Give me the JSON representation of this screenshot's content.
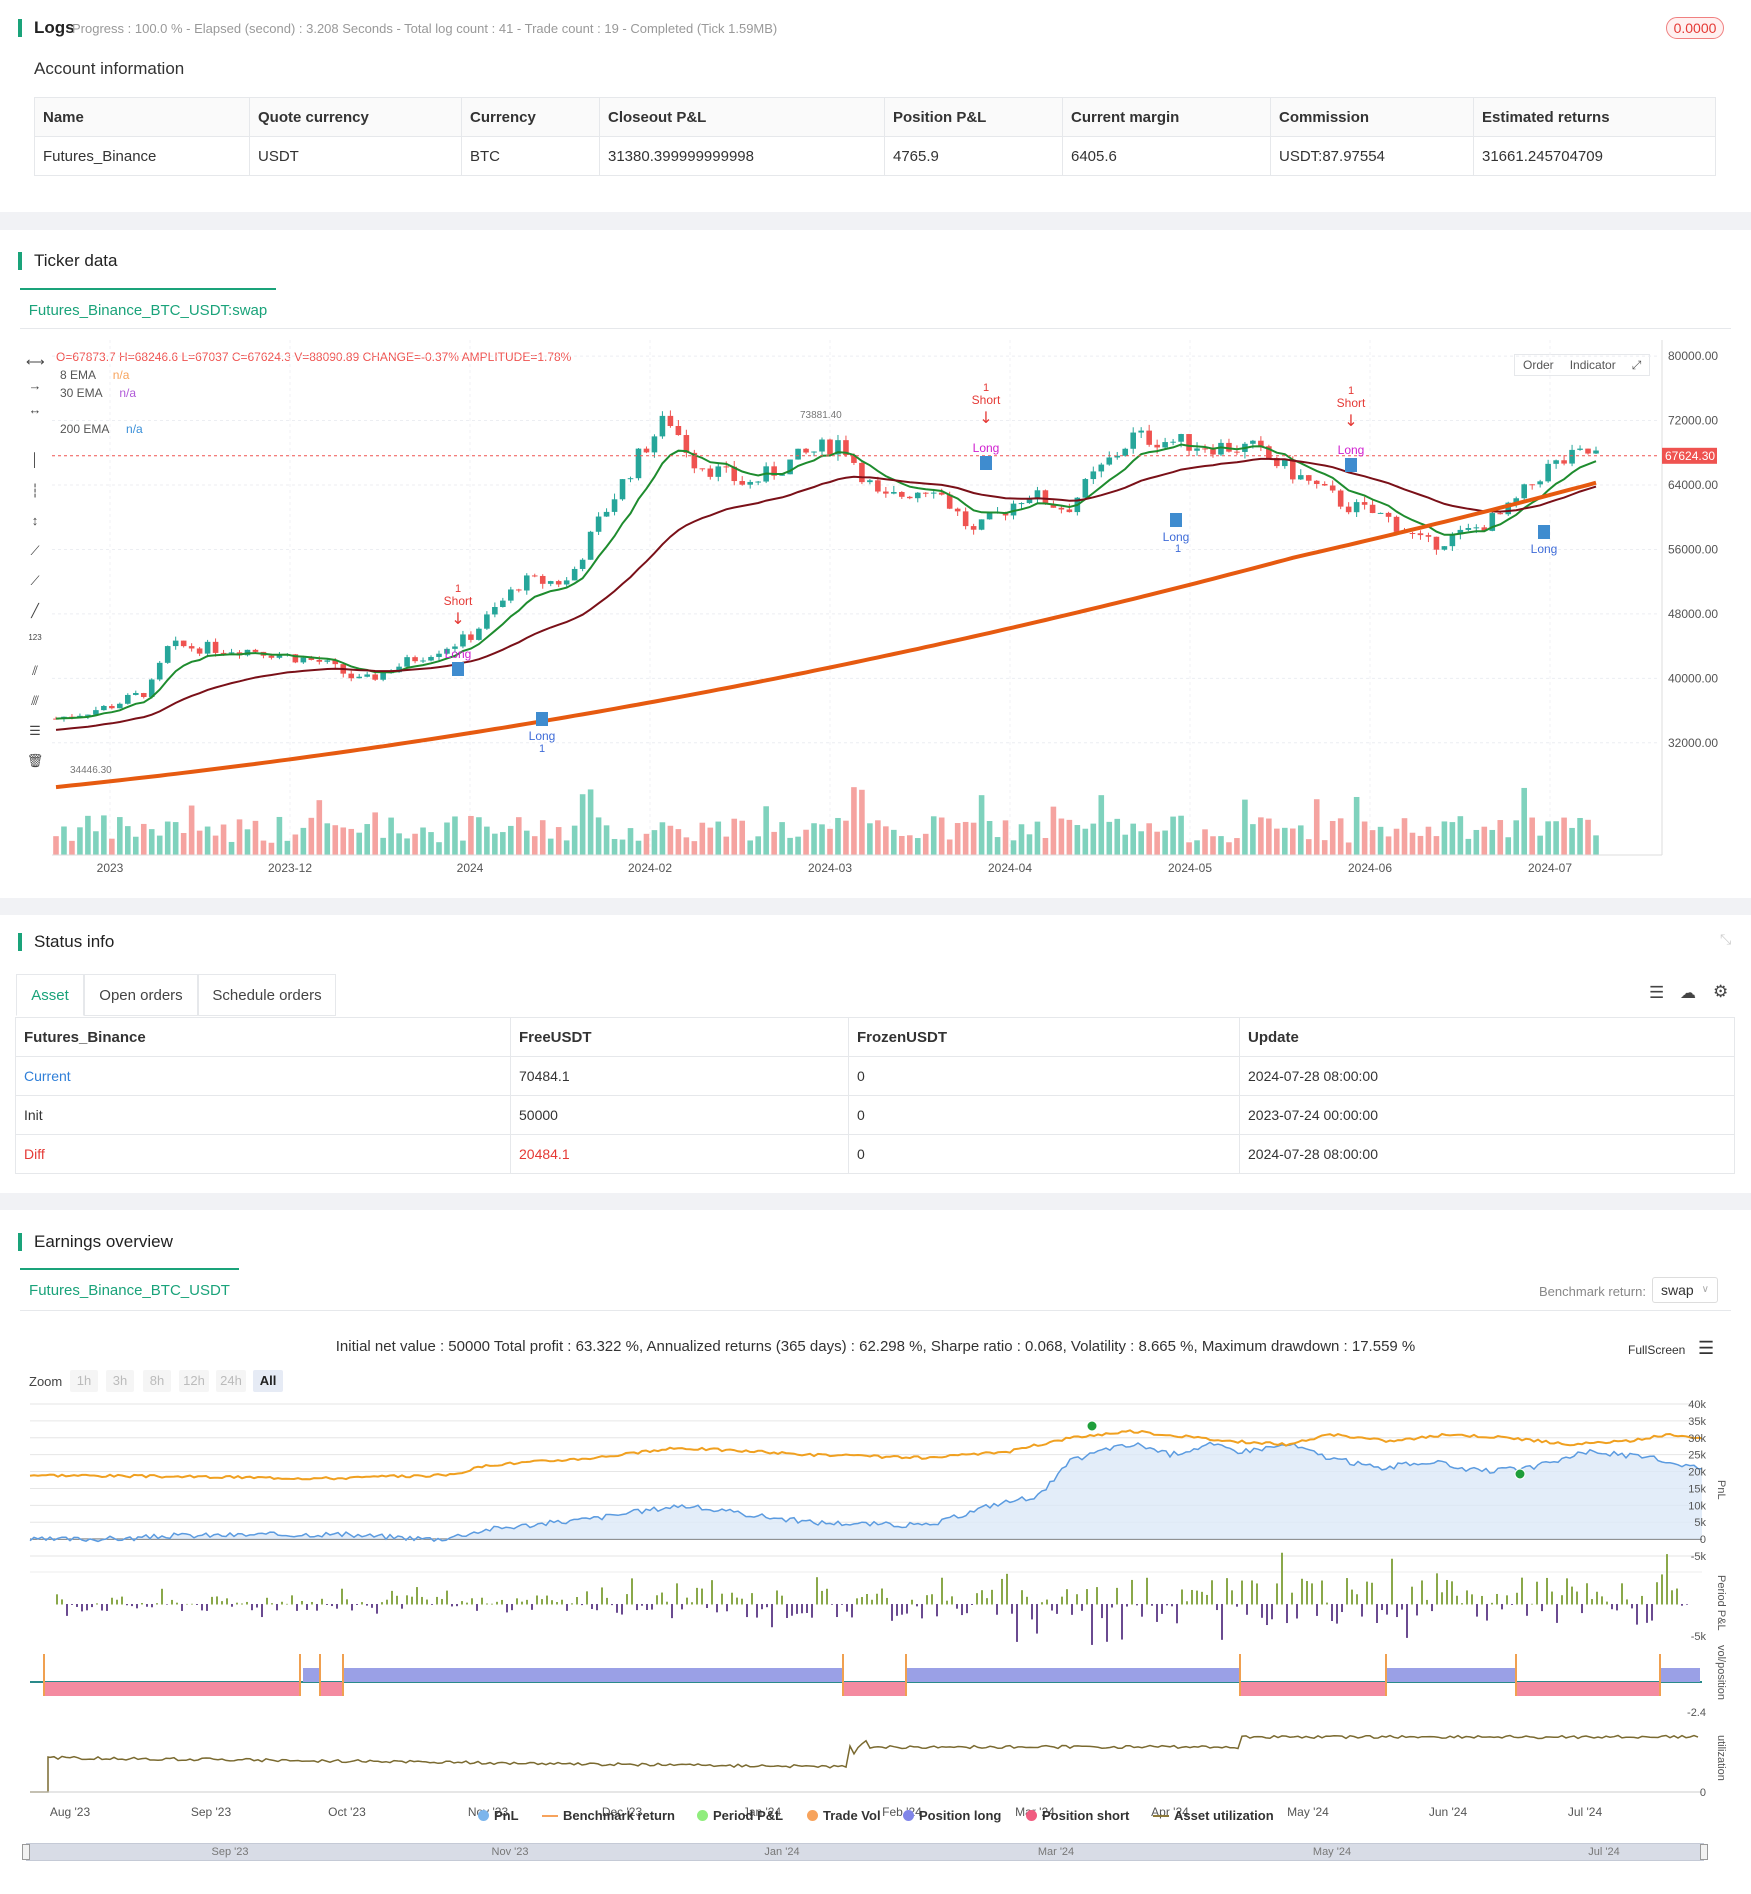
{
  "logs": {
    "title": "Logs",
    "status": "Progress : 100.0 % - Elapsed (second) : 3.208  Seconds - Total log count : 41 - Trade count : 19 - Completed (Tick 1.59MB)",
    "badge": "0.0000"
  },
  "account": {
    "title": "Account information",
    "headers": [
      "Name",
      "Quote currency",
      "Currency",
      "Closeout P&L",
      "Position P&L",
      "Current margin",
      "Commission",
      "Estimated returns"
    ],
    "row": [
      "Futures_Binance",
      "USDT",
      "BTC",
      "31380.399999999998",
      "4765.9",
      "6405.6",
      "USDT:87.97554",
      "31661.245704709"
    ]
  },
  "ticker": {
    "title": "Ticker data",
    "tab": "Futures_Binance_BTC_USDT:swap",
    "ohlc": "O=67873.7 H=68246.6 L=67037 C=67624.3 V=88090.89 CHANGE=-0.37% AMPLITUDE=1.78%",
    "ema8": "8 EMA",
    "ema30": "30 EMA",
    "ema200": "200 EMA",
    "na": "n/a",
    "btn_order": "Order",
    "btn_indicator": "Indicator",
    "price_labels": [
      "80000.00",
      "72000.00",
      "64000.00",
      "56000.00",
      "48000.00",
      "40000.00",
      "32000.00"
    ],
    "current_price": "67624.30",
    "high_label": "73881.40",
    "low_label": "34446.30",
    "x_labels": [
      "2023",
      "2023-12",
      "2024",
      "2024-02",
      "2024-03",
      "2024-04",
      "2024-05",
      "2024-06",
      "2024-07"
    ],
    "signal_short": "Short",
    "signal_long": "Long",
    "signal_qty": "1"
  },
  "status": {
    "title": "Status info",
    "tabs": [
      "Asset",
      "Open orders",
      "Schedule orders"
    ],
    "headers": [
      "Futures_Binance",
      "FreeUSDT",
      "FrozenUSDT",
      "Update"
    ],
    "rows": [
      [
        "Current",
        "70484.1",
        "0",
        "2024-07-28 08:00:00"
      ],
      [
        "Init",
        "50000",
        "0",
        "2023-07-24 00:00:00"
      ],
      [
        "Diff",
        "20484.1",
        "0",
        "2024-07-28 08:00:00"
      ]
    ]
  },
  "earnings": {
    "title": "Earnings overview",
    "tab": "Futures_Binance_BTC_USDT",
    "benchmark_label": "Benchmark return:",
    "benchmark_value": "swap",
    "summary": "Initial net value : 50000 Total profit : 63.322 %, Annualized returns (365 days) : 62.298 %, Sharpe ratio : 0.068, Volatility : 8.665 %, Maximum drawdown : 17.559 %",
    "fullscreen": "FullScreen",
    "zoom_label": "Zoom",
    "zoom_buttons": [
      "1h",
      "3h",
      "8h",
      "12h",
      "24h",
      "All"
    ],
    "pnl_axis": [
      "40k",
      "35k",
      "30k",
      "25k",
      "20k",
      "15k",
      "10k",
      "5k",
      "0",
      "-5k"
    ],
    "pnl_title": "PnL",
    "period_title": "Period P&L",
    "period_axis": "-5k",
    "pos_title": "vol/position",
    "pos_axis": "-2.4",
    "util_title": "utilization",
    "util_axis": "0",
    "x_labels": [
      "Aug '23",
      "Sep '23",
      "Oct '23",
      "Nov '23",
      "Dec '23",
      "Jan '24",
      "Feb '24",
      "Mar '24",
      "Apr '24",
      "May '24",
      "Jun '24",
      "Jul '24"
    ],
    "nav_labels": [
      "Sep '23",
      "Nov '23",
      "Jan '24",
      "Mar '24",
      "May '24",
      "Jul '24"
    ],
    "legend": [
      {
        "label": "PnL",
        "color": "#7cb5ec"
      },
      {
        "label": "Benchmark return",
        "color": "#f7a35c"
      },
      {
        "label": "Period P&L",
        "color": "#90ed7d"
      },
      {
        "label": "Trade Vol",
        "color": "#f7a35c"
      },
      {
        "label": "Position long",
        "color": "#8085e9"
      },
      {
        "label": "Position short",
        "color": "#f15c80"
      },
      {
        "label": "Asset utilization",
        "color": "#8d7a3a"
      }
    ]
  },
  "colors": {
    "accent": "#1aa37a",
    "up": "#26a69a",
    "down": "#ef5350",
    "ema8": "#1e8c2e",
    "ema30": "#7a1018",
    "ema200": "#e65a10"
  }
}
